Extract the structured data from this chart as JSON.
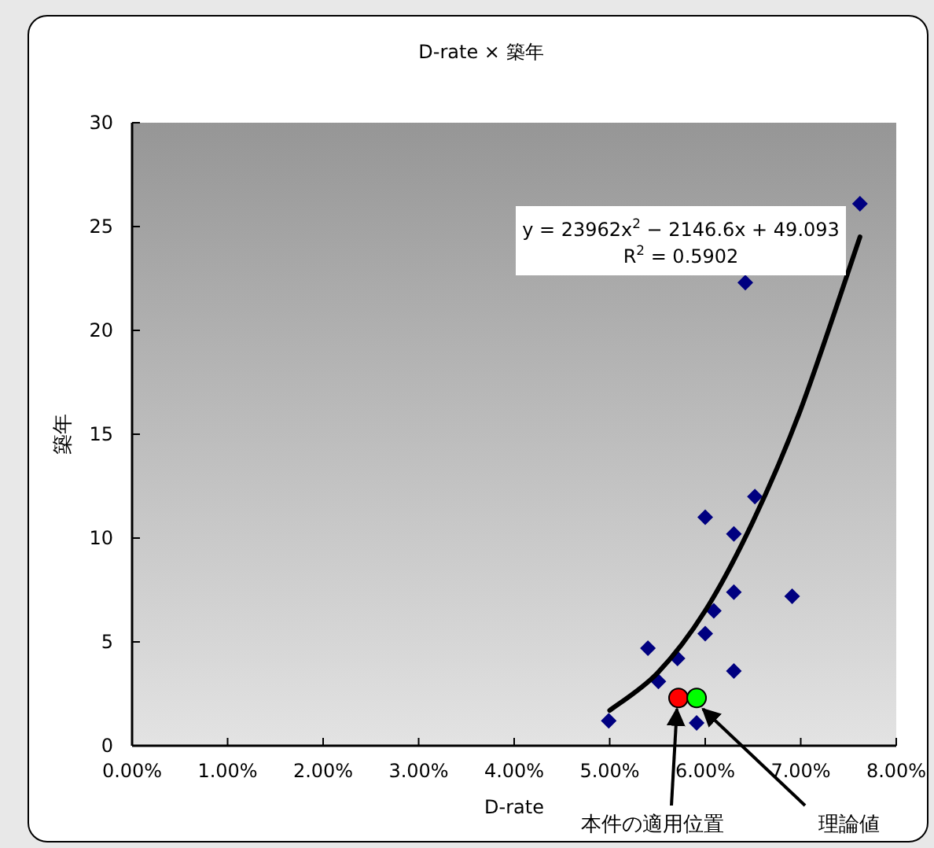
{
  "chart_data": {
    "type": "scatter",
    "title": "D-rate × 築年",
    "xlabel": "D-rate",
    "ylabel": "築年",
    "xlim": [
      0,
      0.08
    ],
    "ylim": [
      0,
      30
    ],
    "xticks": [
      {
        "value": 0,
        "label": "0.00%"
      },
      {
        "value": 0.01,
        "label": "1.00%"
      },
      {
        "value": 0.02,
        "label": "2.00%"
      },
      {
        "value": 0.03,
        "label": "3.00%"
      },
      {
        "value": 0.04,
        "label": "4.00%"
      },
      {
        "value": 0.05,
        "label": "5.00%"
      },
      {
        "value": 0.06,
        "label": "6.00%"
      },
      {
        "value": 0.07,
        "label": "7.00%"
      },
      {
        "value": 0.08,
        "label": "8.00%"
      }
    ],
    "yticks": [
      0,
      5,
      10,
      15,
      20,
      25,
      30
    ],
    "series": [
      {
        "marker": "diamond",
        "color": "#000080",
        "x": [
          0.0499,
          0.054,
          0.0551,
          0.0571,
          0.0591,
          0.06,
          0.0609,
          0.06,
          0.063,
          0.063,
          0.063,
          0.0652,
          0.0642,
          0.0691,
          0.0762
        ],
        "values": [
          1.2,
          4.7,
          3.1,
          4.2,
          1.1,
          5.4,
          6.5,
          11.0,
          10.2,
          7.4,
          3.6,
          12.0,
          22.3,
          7.2,
          26.1
        ]
      },
      {
        "type": "line",
        "marker": "none",
        "color": "#000000",
        "x": [
          0.05,
          0.055,
          0.06,
          0.065,
          0.07,
          0.0762
        ],
        "values": [
          1.7,
          3.5,
          6.5,
          10.8,
          16.2,
          24.5
        ]
      },
      {
        "marker": "circle",
        "color": "#ff0000",
        "x": [
          0.0572
        ],
        "values": [
          2.3
        ]
      },
      {
        "marker": "circle",
        "color": "#00ff00",
        "x": [
          0.0591
        ],
        "values": [
          2.3
        ]
      }
    ],
    "annotations": [
      "y = 23962x$^{2}$ − 2146.6x + 49.093",
      "R$^{2}$ = 0.5902",
      {
        "text": "本件の適用位置",
        "x": 0.0572,
        "y": 2.3
      },
      {
        "text": "理論値",
        "x": 0.0591,
        "y": 2.3
      }
    ]
  }
}
